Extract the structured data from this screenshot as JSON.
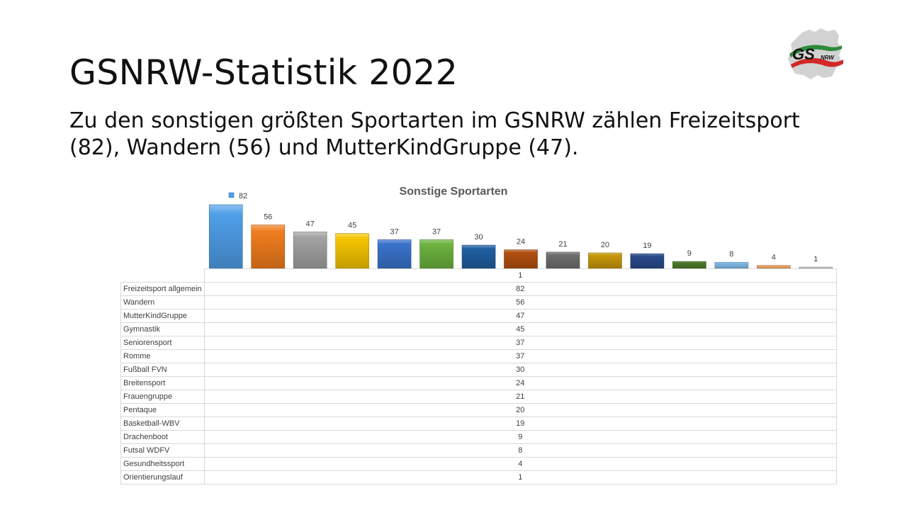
{
  "slide": {
    "title": "GSNRW-Statistik 2022",
    "text": "Zu den sonstigen größten Sportarten im GSNRW zählen Freizeitsport (82), Wandern (56) und MutterKindGruppe (47)."
  },
  "logo": {
    "text": "GS NRW",
    "icon": "gsnrw-logo-icon"
  },
  "chart_data": {
    "type": "bar",
    "title": "Sonstige Sportarten",
    "legend_marker": "top-left",
    "categories": [
      "Freizeitsport allgemein",
      "Wandern",
      "MutterKindGruppe",
      "Gymnastik",
      "Seniorensport",
      "Romme",
      "Fußball FVN",
      "Breitensport",
      "Frauengruppe",
      "Pentaque",
      "Basketball-WBV",
      "Drachenboot",
      "Futsal WDFV",
      "Gesundheitssport",
      "Orientierungslauf"
    ],
    "values": [
      82,
      56,
      47,
      45,
      37,
      37,
      30,
      24,
      21,
      20,
      19,
      9,
      8,
      4,
      1
    ],
    "colors": [
      "#4f9fe8",
      "#f07d1e",
      "#a3a3a3",
      "#f5c400",
      "#3a73cc",
      "#6cb33f",
      "#1f5fa0",
      "#b24f10",
      "#6e6e6e",
      "#c7970a",
      "#2a4a8c",
      "#4c7a2a",
      "#7fbbe8",
      "#f2a96a",
      "#cfcfcf"
    ],
    "table_header": "1",
    "xlabel": "",
    "ylabel": ""
  }
}
